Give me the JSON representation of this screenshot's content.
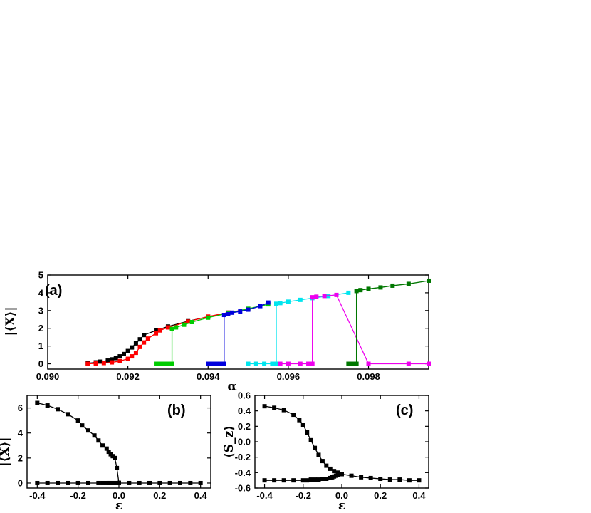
{
  "chart_data": [
    {
      "panel": "(a)",
      "type": "line",
      "xlabel": "α",
      "ylabel": "|⟨X⟩|",
      "xlim": [
        0.09,
        0.0995
      ],
      "ylim": [
        -0.3,
        5
      ],
      "xticks": [
        0.09,
        0.092,
        0.094,
        0.096,
        0.098
      ],
      "xtick_labels": [
        "0.090",
        "0.092",
        "0.094",
        "0.096",
        "0.098"
      ],
      "yticks": [
        0,
        1,
        2,
        3,
        4,
        5
      ],
      "ytick_labels": [
        "0",
        "1",
        "2",
        "3",
        "4",
        "5"
      ],
      "series": [
        {
          "color": "#000000",
          "x": [
            0.091,
            0.0912,
            0.0913,
            0.0915,
            0.0916,
            0.0917,
            0.0918,
            0.0919,
            0.092,
            0.0921,
            0.0922,
            0.0923,
            0.0924,
            0.0927,
            0.093,
            0.0935,
            0.094,
            0.0945
          ],
          "y": [
            0.03,
            0.08,
            0.12,
            0.18,
            0.25,
            0.32,
            0.42,
            0.55,
            0.72,
            0.92,
            1.15,
            1.38,
            1.62,
            1.88,
            2.1,
            2.4,
            2.65,
            2.88
          ]
        },
        {
          "color": "#ff0000",
          "x": [
            0.091,
            0.0912,
            0.0914,
            0.0916,
            0.0918,
            0.092,
            0.0921,
            0.0922,
            0.0923,
            0.0924,
            0.0925,
            0.0927,
            0.0928,
            0.093,
            0.0935,
            0.094,
            0.0945,
            0.095
          ],
          "y": [
            0.0,
            0.02,
            0.04,
            0.08,
            0.15,
            0.28,
            0.42,
            0.62,
            0.95,
            1.2,
            1.42,
            1.72,
            1.88,
            2.05,
            2.38,
            2.66,
            2.88,
            3.08
          ]
        },
        {
          "color": "#00cc00",
          "x": [
            0.0927,
            0.0928,
            0.0929,
            0.093,
            0.0931,
            0.0931,
            0.0932,
            0.0934,
            0.0936,
            0.094,
            0.0945,
            0.095,
            0.0955
          ],
          "y": [
            0.0,
            0.0,
            0.0,
            0.0,
            0.0,
            1.96,
            2.05,
            2.2,
            2.35,
            2.6,
            2.85,
            3.1,
            3.35
          ]
        },
        {
          "color": "#0000dd",
          "x": [
            0.094,
            0.0941,
            0.0942,
            0.0943,
            0.0944,
            0.0944,
            0.0945,
            0.0946,
            0.0948,
            0.095,
            0.0953,
            0.0955
          ],
          "y": [
            0.0,
            0.0,
            0.0,
            0.0,
            0.0,
            2.75,
            2.8,
            2.88,
            2.95,
            3.05,
            3.25,
            3.45
          ]
        },
        {
          "color": "#00e5ee",
          "x": [
            0.095,
            0.0952,
            0.0954,
            0.0956,
            0.0957,
            0.0957,
            0.0958,
            0.096,
            0.0963,
            0.0966,
            0.097,
            0.0975
          ],
          "y": [
            0.0,
            0.0,
            0.0,
            0.0,
            0.0,
            3.38,
            3.42,
            3.5,
            3.6,
            3.7,
            3.82,
            4.0
          ]
        },
        {
          "color": "#ee00ee",
          "x": [
            0.0958,
            0.096,
            0.0963,
            0.0965,
            0.0966,
            0.0966,
            0.0967,
            0.0969,
            0.0972,
            0.098,
            0.099,
            0.0995
          ],
          "y": [
            0.0,
            0.0,
            0.0,
            0.0,
            0.0,
            3.75,
            3.78,
            3.82,
            3.88,
            0.0,
            0.0,
            0.0
          ]
        },
        {
          "color": "#007700",
          "x": [
            0.0975,
            0.0976,
            0.0977,
            0.0977,
            0.0978,
            0.098,
            0.0983,
            0.0986,
            0.099,
            0.0995
          ],
          "y": [
            0.0,
            0.0,
            0.0,
            4.1,
            4.15,
            4.22,
            4.3,
            4.4,
            4.5,
            4.68
          ]
        }
      ]
    },
    {
      "panel": "(b)",
      "type": "line",
      "xlabel": "ε",
      "ylabel": "|⟨X⟩|",
      "xlim": [
        -0.45,
        0.45
      ],
      "ylim": [
        -0.4,
        7
      ],
      "xticks": [
        -0.4,
        -0.2,
        0.0,
        0.2,
        0.4
      ],
      "xtick_labels": [
        "-0.4",
        "-0.2",
        "0.0",
        "0.2",
        "0.4"
      ],
      "yticks": [
        0,
        2,
        4,
        6
      ],
      "ytick_labels": [
        "0",
        "2",
        "4",
        "6"
      ],
      "series": [
        {
          "color": "#000000",
          "x": [
            -0.4,
            -0.35,
            -0.3,
            -0.25,
            -0.2,
            -0.18,
            -0.15,
            -0.12,
            -0.1,
            -0.08,
            -0.06,
            -0.05,
            -0.04,
            -0.03,
            -0.02,
            -0.01,
            0.0
          ],
          "y": [
            6.4,
            6.2,
            5.9,
            5.5,
            5.0,
            4.6,
            4.2,
            3.8,
            3.4,
            3.0,
            2.75,
            2.5,
            2.3,
            2.15,
            2.0,
            1.2,
            0.02
          ]
        },
        {
          "color": "#000000",
          "x": [
            -0.4,
            -0.35,
            -0.3,
            -0.25,
            -0.2,
            -0.15,
            -0.1,
            -0.08,
            -0.06,
            -0.05,
            -0.04,
            -0.03,
            -0.02,
            -0.01,
            0.0,
            0.05,
            0.1,
            0.15,
            0.2,
            0.25,
            0.3,
            0.35,
            0.4
          ],
          "y": [
            0,
            0,
            0,
            0,
            0,
            0,
            0,
            0,
            0,
            0,
            0,
            0,
            0,
            0,
            0,
            0,
            0,
            0,
            0,
            0,
            0,
            0,
            0
          ]
        }
      ]
    },
    {
      "panel": "(c)",
      "type": "line",
      "xlabel": "ε",
      "ylabel": "⟨S_z⟩",
      "xlim": [
        -0.45,
        0.45
      ],
      "ylim": [
        -0.6,
        0.6
      ],
      "xticks": [
        -0.4,
        -0.2,
        0.0,
        0.2,
        0.4
      ],
      "xtick_labels": [
        "-0.4",
        "-0.2",
        "0.0",
        "0.2",
        "0.4"
      ],
      "yticks": [
        -0.6,
        -0.4,
        -0.2,
        0.0,
        0.2,
        0.4,
        0.6
      ],
      "ytick_labels": [
        "-0.6",
        "-0.4",
        "-0.2",
        "0.0",
        "0.2",
        "0.4",
        "0.6"
      ],
      "series": [
        {
          "color": "#000000",
          "x": [
            -0.4,
            -0.35,
            -0.3,
            -0.25,
            -0.22,
            -0.2,
            -0.18,
            -0.16,
            -0.14,
            -0.12,
            -0.1,
            -0.08,
            -0.06,
            -0.04,
            -0.02,
            0.0,
            0.05,
            0.1,
            0.15,
            0.2,
            0.25,
            0.3,
            0.35,
            0.4
          ],
          "y": [
            0.46,
            0.44,
            0.41,
            0.35,
            0.28,
            0.22,
            0.12,
            0.02,
            -0.08,
            -0.17,
            -0.25,
            -0.31,
            -0.35,
            -0.38,
            -0.4,
            -0.42,
            -0.44,
            -0.46,
            -0.47,
            -0.48,
            -0.49,
            -0.49,
            -0.5,
            -0.5
          ]
        },
        {
          "color": "#000000",
          "x": [
            -0.4,
            -0.35,
            -0.3,
            -0.25,
            -0.2,
            -0.18,
            -0.16,
            -0.14,
            -0.12,
            -0.1,
            -0.08,
            -0.06,
            -0.05,
            -0.04,
            -0.03,
            -0.02,
            -0.01
          ],
          "y": [
            -0.5,
            -0.5,
            -0.5,
            -0.5,
            -0.5,
            -0.5,
            -0.49,
            -0.49,
            -0.49,
            -0.48,
            -0.48,
            -0.47,
            -0.46,
            -0.45,
            -0.44,
            -0.43,
            -0.42
          ]
        }
      ]
    }
  ]
}
